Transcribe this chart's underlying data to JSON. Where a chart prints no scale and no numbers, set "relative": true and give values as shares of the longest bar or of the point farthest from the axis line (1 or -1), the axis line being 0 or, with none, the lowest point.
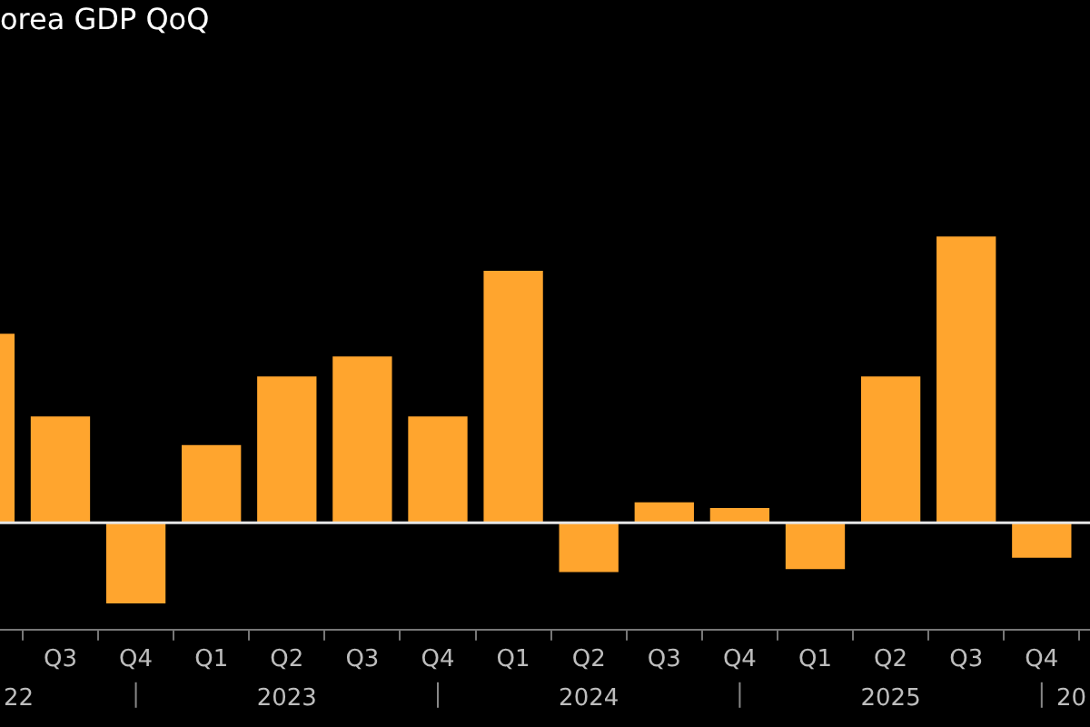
{
  "chart_data": {
    "type": "bar",
    "title": "orea GDP QoQ",
    "categories": [
      null,
      "Q3",
      "Q4",
      "Q1",
      "Q2",
      "Q3",
      "Q4",
      "Q1",
      "Q2",
      "Q3",
      "Q4",
      "Q1",
      "Q2",
      "Q3",
      "Q4"
    ],
    "values": [
      0.66,
      0.37,
      -0.28,
      0.27,
      0.51,
      0.58,
      0.37,
      0.88,
      -0.17,
      0.07,
      0.05,
      -0.16,
      0.51,
      1,
      -0.12
    ],
    "color": "#ffa52e",
    "relative": true,
    "annotations": [
      "22",
      "2023",
      "2024",
      "2025",
      "20"
    ]
  }
}
